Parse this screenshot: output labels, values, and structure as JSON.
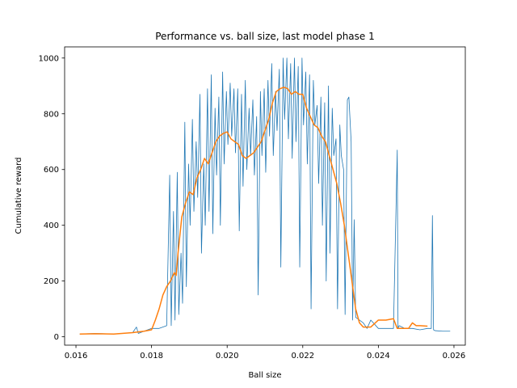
{
  "chart_data": {
    "type": "line",
    "title": "Performance vs. ball size, last model phase 1",
    "xlabel": "Ball size",
    "ylabel": "Cumulative reward",
    "xlim": [
      0.0157,
      0.0263
    ],
    "ylim": [
      -30,
      1040
    ],
    "xticks": [
      0.016,
      0.018,
      0.02,
      0.022,
      0.024,
      0.026
    ],
    "xtick_labels": [
      "0.016",
      "0.018",
      "0.020",
      "0.022",
      "0.024",
      "0.026"
    ],
    "yticks": [
      0,
      200,
      400,
      600,
      800,
      1000
    ],
    "ytick_labels": [
      "0",
      "200",
      "400",
      "600",
      "800",
      "1000"
    ],
    "grid": false,
    "series": [
      {
        "color": "#1f77b4",
        "x": [
          0.0161,
          0.0165,
          0.017,
          0.0175,
          0.0176,
          0.01765,
          0.0178,
          0.018,
          0.0182,
          0.0184,
          0.01848,
          0.01852,
          0.01858,
          0.01862,
          0.01868,
          0.01872,
          0.01878,
          0.01882,
          0.01888,
          0.01892,
          0.01898,
          0.01902,
          0.01908,
          0.01912,
          0.01918,
          0.01922,
          0.01928,
          0.01932,
          0.01938,
          0.01942,
          0.01948,
          0.01952,
          0.01958,
          0.01962,
          0.01968,
          0.01972,
          0.01978,
          0.01982,
          0.01988,
          0.01992,
          0.01998,
          0.02002,
          0.02008,
          0.02012,
          0.02018,
          0.02022,
          0.02028,
          0.02032,
          0.02038,
          0.02042,
          0.02048,
          0.02052,
          0.02058,
          0.02062,
          0.02068,
          0.02072,
          0.02078,
          0.02082,
          0.02088,
          0.02092,
          0.02098,
          0.02102,
          0.02108,
          0.02112,
          0.02118,
          0.02122,
          0.02128,
          0.02132,
          0.02138,
          0.02142,
          0.02148,
          0.02152,
          0.02158,
          0.02162,
          0.02168,
          0.02172,
          0.02178,
          0.02182,
          0.02188,
          0.02192,
          0.02198,
          0.02202,
          0.02208,
          0.02212,
          0.02218,
          0.02222,
          0.02228,
          0.02232,
          0.02238,
          0.02242,
          0.02248,
          0.02252,
          0.02258,
          0.02262,
          0.02268,
          0.02272,
          0.02278,
          0.02282,
          0.02288,
          0.02292,
          0.02298,
          0.02302,
          0.02308,
          0.02312,
          0.02318,
          0.02322,
          0.02328,
          0.02332,
          0.02336,
          0.0234,
          0.0235,
          0.0236,
          0.0237,
          0.0238,
          0.024,
          0.0242,
          0.0244,
          0.0245,
          0.02452,
          0.02455,
          0.0247,
          0.0249,
          0.0251,
          0.0253,
          0.0254,
          0.02543,
          0.02546,
          0.0255,
          0.0257,
          0.0259
        ],
        "y": [
          10,
          12,
          10,
          15,
          35,
          12,
          20,
          30,
          30,
          40,
          580,
          40,
          450,
          60,
          590,
          80,
          300,
          120,
          770,
          180,
          620,
          400,
          780,
          450,
          700,
          500,
          870,
          300,
          620,
          400,
          890,
          450,
          940,
          370,
          820,
          580,
          860,
          400,
          950,
          620,
          880,
          690,
          910,
          720,
          890,
          660,
          890,
          380,
          870,
          540,
          920,
          600,
          820,
          650,
          850,
          580,
          790,
          150,
          880,
          650,
          890,
          590,
          920,
          720,
          980,
          650,
          880,
          740,
          960,
          250,
          1000,
          780,
          1000,
          710,
          980,
          640,
          1000,
          700,
          970,
          250,
          1000,
          760,
          950,
          620,
          940,
          100,
          920,
          760,
          830,
          550,
          860,
          400,
          840,
          200,
          900,
          300,
          820,
          650,
          710,
          100,
          760,
          650,
          600,
          80,
          850,
          860,
          700,
          60,
          420,
          70,
          60,
          50,
          30,
          60,
          30,
          30,
          30,
          670,
          30,
          40,
          30,
          30,
          25,
          30,
          30,
          435,
          25,
          22,
          20,
          20
        ]
      },
      {
        "color": "#ff7f0e",
        "x": [
          0.0161,
          0.0165,
          0.017,
          0.0175,
          0.0178,
          0.018,
          0.0181,
          0.0182,
          0.0183,
          0.0184,
          0.0185,
          0.0186,
          0.01865,
          0.0187,
          0.0188,
          0.0189,
          0.019,
          0.0191,
          0.0192,
          0.0193,
          0.0194,
          0.0195,
          0.0196,
          0.0197,
          0.0198,
          0.0199,
          0.02,
          0.0201,
          0.0202,
          0.0203,
          0.0204,
          0.0205,
          0.0206,
          0.0207,
          0.0208,
          0.0209,
          0.021,
          0.0211,
          0.0212,
          0.0213,
          0.0214,
          0.0215,
          0.0216,
          0.0217,
          0.0218,
          0.0219,
          0.022,
          0.0221,
          0.0222,
          0.0223,
          0.0224,
          0.0225,
          0.0226,
          0.0227,
          0.0228,
          0.0229,
          0.023,
          0.0231,
          0.0232,
          0.0233,
          0.0234,
          0.0235,
          0.0236,
          0.0238,
          0.024,
          0.0242,
          0.0244,
          0.0245,
          0.0246,
          0.0248,
          0.0249,
          0.025,
          0.0251,
          0.0253
        ],
        "y": [
          10,
          11,
          10,
          15,
          20,
          25,
          60,
          100,
          150,
          180,
          200,
          230,
          220,
          300,
          430,
          480,
          520,
          510,
          570,
          600,
          640,
          620,
          660,
          700,
          720,
          730,
          735,
          710,
          700,
          690,
          650,
          640,
          650,
          660,
          680,
          700,
          740,
          780,
          840,
          880,
          890,
          895,
          890,
          870,
          880,
          870,
          870,
          820,
          790,
          760,
          750,
          720,
          700,
          650,
          600,
          550,
          480,
          400,
          300,
          200,
          100,
          50,
          35,
          35,
          60,
          60,
          65,
          30,
          30,
          30,
          50,
          40,
          40,
          38
        ]
      }
    ]
  }
}
